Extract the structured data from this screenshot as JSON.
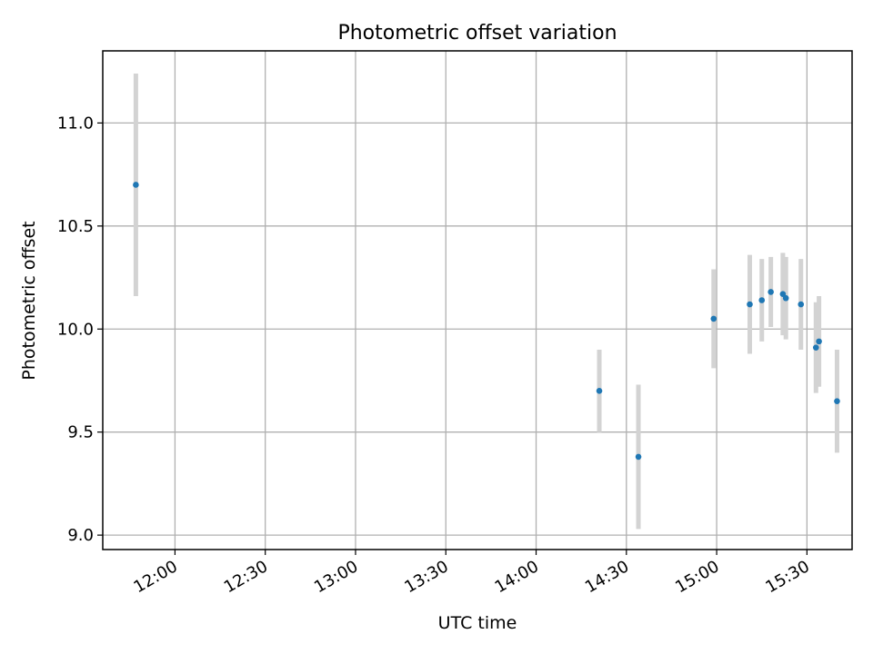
{
  "chart_data": {
    "type": "scatter",
    "title": "Photometric offset variation",
    "xlabel": "UTC time",
    "ylabel": "Photometric offset",
    "xlim": [
      "11:36",
      "15:45"
    ],
    "ylim": [
      8.93,
      11.35
    ],
    "x_ticks": [
      "12:00",
      "12:30",
      "13:00",
      "13:30",
      "14:00",
      "14:30",
      "15:00",
      "15:30"
    ],
    "y_ticks": [
      "9.0",
      "9.5",
      "10.0",
      "10.5",
      "11.0"
    ],
    "grid": true,
    "colors": {
      "point": "#1f77b4",
      "errorbar": "#d3d3d3"
    },
    "points": [
      {
        "time": "11:47",
        "offset": 10.7,
        "err": 0.54
      },
      {
        "time": "14:21",
        "offset": 9.7,
        "err": 0.2
      },
      {
        "time": "14:34",
        "offset": 9.38,
        "err": 0.35
      },
      {
        "time": "14:59",
        "offset": 10.05,
        "err": 0.24
      },
      {
        "time": "15:11",
        "offset": 10.12,
        "err": 0.24
      },
      {
        "time": "15:15",
        "offset": 10.14,
        "err": 0.2
      },
      {
        "time": "15:18",
        "offset": 10.18,
        "err": 0.17
      },
      {
        "time": "15:22",
        "offset": 10.17,
        "err": 0.2
      },
      {
        "time": "15:23",
        "offset": 10.15,
        "err": 0.2
      },
      {
        "time": "15:28",
        "offset": 10.12,
        "err": 0.22
      },
      {
        "time": "15:33",
        "offset": 9.91,
        "err": 0.22
      },
      {
        "time": "15:34",
        "offset": 9.94,
        "err": 0.22
      },
      {
        "time": "15:40",
        "offset": 9.65,
        "err": 0.25
      }
    ]
  }
}
